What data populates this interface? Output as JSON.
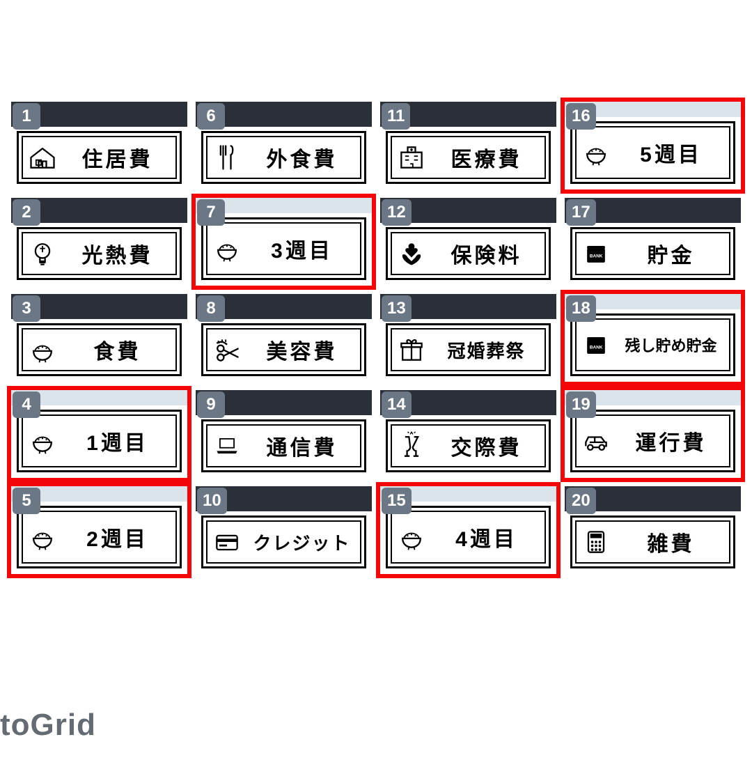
{
  "grid": {
    "cols": 4,
    "rows": 5,
    "colors": {
      "badge_bg": "#6b7785",
      "dark_bg": "#2b3038",
      "light_strip": "#dbe4ea",
      "highlight": "#f40508",
      "card_border": "#000000",
      "page_bg": "#ffffff",
      "watermark": "#646b72"
    }
  },
  "watermark": "toGrid",
  "cells": [
    {
      "num": "1",
      "label": "住居費",
      "icon": "house",
      "style": "dark",
      "hl": false,
      "size": "lg"
    },
    {
      "num": "6",
      "label": "外食費",
      "icon": "fork",
      "style": "dark",
      "hl": false,
      "size": "lg"
    },
    {
      "num": "11",
      "label": "医療費",
      "icon": "hospital",
      "style": "dark",
      "hl": false,
      "size": "lg"
    },
    {
      "num": "16",
      "label": "5週目",
      "icon": "rice",
      "style": "light",
      "hl": true,
      "size": "lg"
    },
    {
      "num": "2",
      "label": "光熱費",
      "icon": "bulb",
      "style": "dark",
      "hl": false,
      "size": "lg"
    },
    {
      "num": "7",
      "label": "3週目",
      "icon": "rice",
      "style": "light",
      "hl": true,
      "size": "lg"
    },
    {
      "num": "12",
      "label": "保険料",
      "icon": "hands",
      "style": "dark",
      "hl": false,
      "size": "lg"
    },
    {
      "num": "17",
      "label": "貯金",
      "icon": "bank",
      "style": "dark",
      "hl": false,
      "size": "lg"
    },
    {
      "num": "3",
      "label": "食費",
      "icon": "rice",
      "style": "dark",
      "hl": false,
      "size": "lg"
    },
    {
      "num": "8",
      "label": "美容費",
      "icon": "scissor",
      "style": "dark",
      "hl": false,
      "size": "lg"
    },
    {
      "num": "13",
      "label": "冠婚葬祭",
      "icon": "gift",
      "style": "dark",
      "hl": false,
      "size": "med"
    },
    {
      "num": "18",
      "label": "残し貯め貯金",
      "icon": "bank",
      "style": "light",
      "hl": true,
      "size": "sm"
    },
    {
      "num": "4",
      "label": "1週目",
      "icon": "rice",
      "style": "light",
      "hl": true,
      "size": "lg"
    },
    {
      "num": "9",
      "label": "通信費",
      "icon": "laptop",
      "style": "dark",
      "hl": false,
      "size": "lg"
    },
    {
      "num": "14",
      "label": "交際費",
      "icon": "cheers",
      "style": "dark",
      "hl": false,
      "size": "lg"
    },
    {
      "num": "19",
      "label": "運行費",
      "icon": "car",
      "style": "light",
      "hl": true,
      "size": "lg"
    },
    {
      "num": "5",
      "label": "2週目",
      "icon": "rice",
      "style": "light",
      "hl": true,
      "size": "lg"
    },
    {
      "num": "10",
      "label": "クレジット",
      "icon": "card",
      "style": "dark",
      "hl": false,
      "size": "med"
    },
    {
      "num": "15",
      "label": "4週目",
      "icon": "rice",
      "style": "light",
      "hl": true,
      "size": "lg"
    },
    {
      "num": "20",
      "label": "雑費",
      "icon": "calc",
      "style": "dark",
      "hl": false,
      "size": "lg"
    }
  ]
}
